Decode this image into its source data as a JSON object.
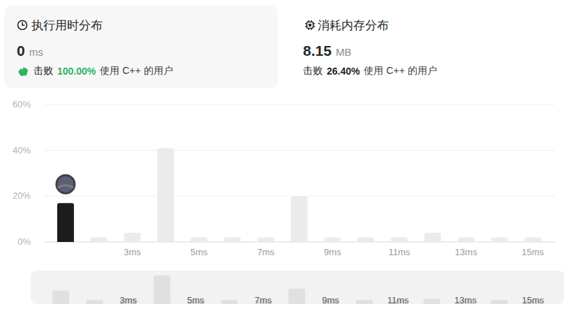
{
  "cards": [
    {
      "title": "执行用时分布",
      "value": "0",
      "unit": "ms",
      "beats_label": "击败",
      "beats": "100.00%",
      "suffix": "使用 C++ 的用户"
    },
    {
      "title": "消耗内存分布",
      "value": "8.15",
      "unit": "MB",
      "beats_label": "击败",
      "beats": "26.40%",
      "suffix": "使用 C++ 的用户"
    }
  ],
  "chart_data": {
    "type": "bar",
    "categories": [
      null,
      null,
      "3ms",
      null,
      "5ms",
      null,
      "7ms",
      null,
      "9ms",
      null,
      "11ms",
      null,
      "13ms",
      null,
      "15ms"
    ],
    "values": [
      17,
      2,
      4,
      41,
      2,
      2,
      2,
      20,
      2,
      2,
      2,
      4,
      2,
      2,
      2
    ],
    "colors": [
      "#1c1c1c",
      "#ebebeb",
      "#ebebeb",
      "#ebebeb",
      "#ebebeb",
      "#ebebeb",
      "#ebebeb",
      "#ebebeb",
      "#ebebeb",
      "#ebebeb",
      "#ebebeb",
      "#ebebeb",
      "#ebebeb",
      "#ebebeb",
      "#ebebeb"
    ],
    "ylim": [
      0,
      60
    ],
    "yticks": [
      {
        "value": 0,
        "label": "0%"
      },
      {
        "value": 20,
        "label": "20%"
      },
      {
        "value": 40,
        "label": "40%"
      },
      {
        "value": 60,
        "label": "60%"
      }
    ],
    "grid": true
  }
}
